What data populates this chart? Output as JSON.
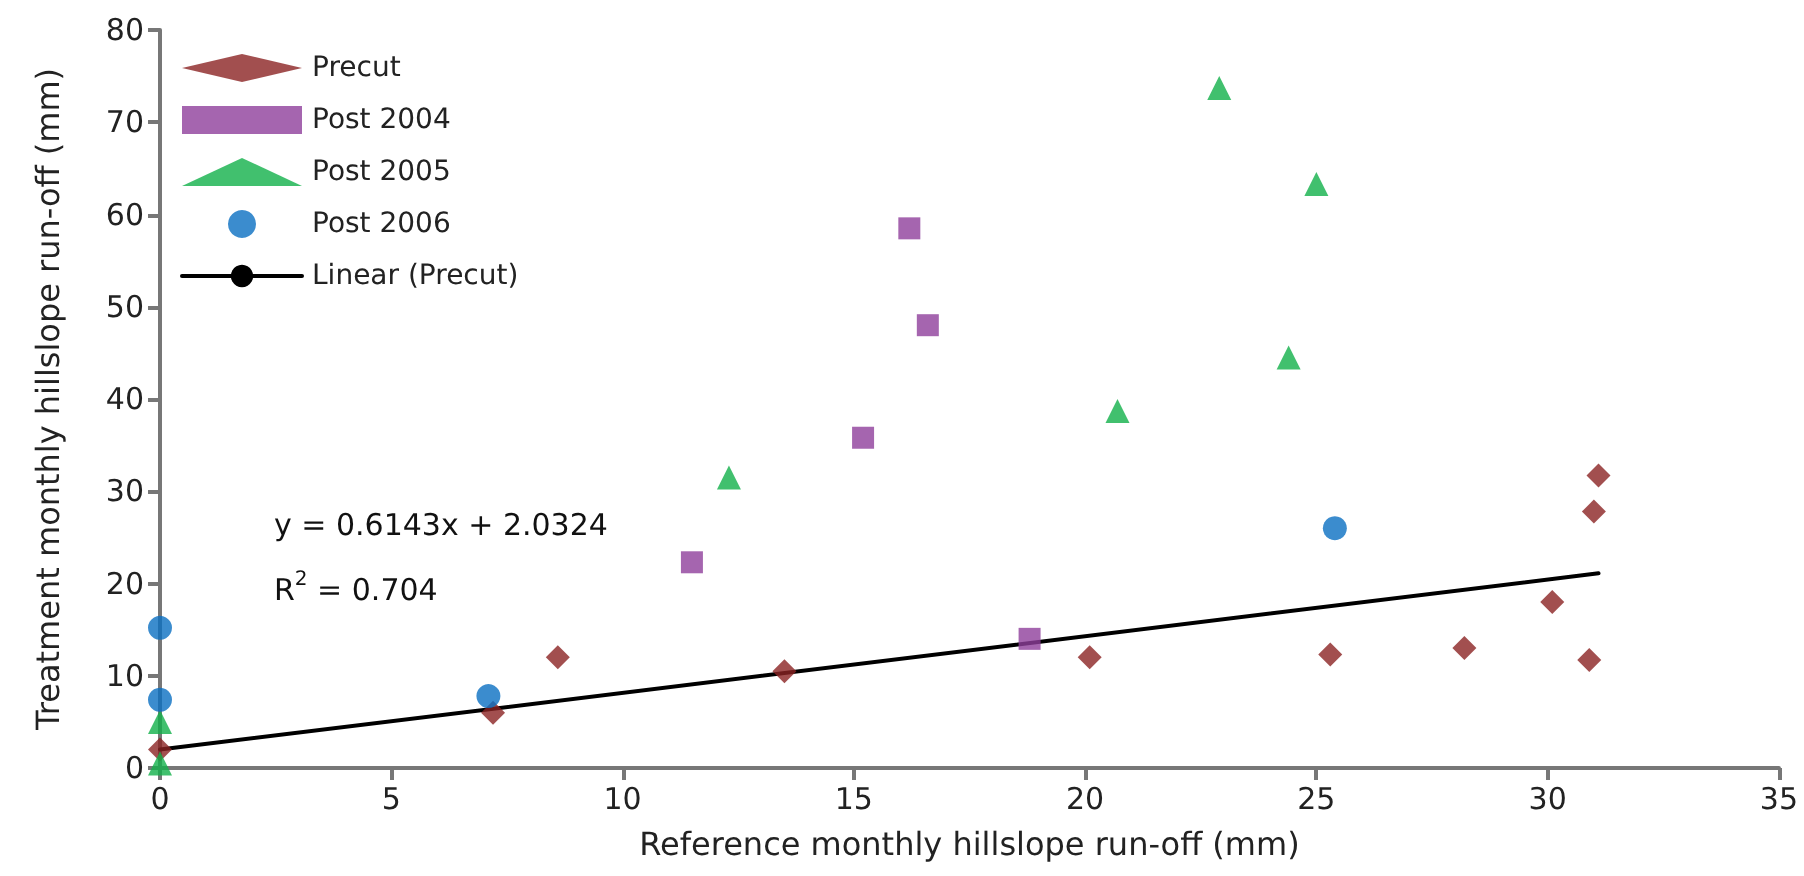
{
  "chart_data": {
    "type": "scatter",
    "xlabel": "Reference monthly hillslope run-off (mm)",
    "ylabel": "Treatment monthly hillslope run-off (mm)",
    "xlim": [
      0,
      35
    ],
    "xticks": [
      0,
      5,
      10,
      15,
      20,
      25,
      30,
      35
    ],
    "ylim": [
      0,
      80
    ],
    "yticks": [
      0,
      10,
      20,
      30,
      40,
      50,
      60,
      70,
      80
    ],
    "grid": false,
    "legend": "top left",
    "annotations": [
      "y = 0.6143x + 2.0324",
      "R$^{2}$ = 0.704"
    ],
    "series": [
      {
        "name": "Precut",
        "color": "#8b2323",
        "marker": "diamond",
        "x": [
          0,
          7.2,
          8.6,
          13.5,
          20.1,
          25.3,
          28.2,
          30.1,
          30.9,
          31.0,
          31.1
        ],
        "values": [
          2,
          6,
          12,
          10.5,
          12,
          12.3,
          13,
          18,
          11.7,
          27.8,
          31.7
        ]
      },
      {
        "name": "Post 2004",
        "color": "#8e3f9b",
        "marker": "square",
        "x": [
          11.5,
          15.2,
          16.2,
          16.6,
          18.8
        ],
        "values": [
          22.3,
          35.8,
          58.5,
          48,
          14
        ]
      },
      {
        "name": "Post 2005",
        "color": "#12b04a",
        "marker": "triangle",
        "x": [
          0,
          0,
          12.3,
          20.7,
          22.9,
          24.4,
          25
        ],
        "values": [
          0.5,
          5,
          31.5,
          38.7,
          73.7,
          44.5,
          63.3
        ]
      },
      {
        "name": "Post 2006",
        "color": "#0a6fc2",
        "marker": "circle",
        "x": [
          0,
          0,
          7.1,
          25.4
        ],
        "values": [
          15.2,
          7.4,
          7.8,
          26
        ]
      },
      {
        "name": "Linear (Precut)",
        "type": "line",
        "color": "#000000",
        "marker": "none",
        "line_style": "solid",
        "x": [
          0,
          31.1
        ],
        "values": [
          2.0,
          21.1
        ]
      }
    ]
  }
}
